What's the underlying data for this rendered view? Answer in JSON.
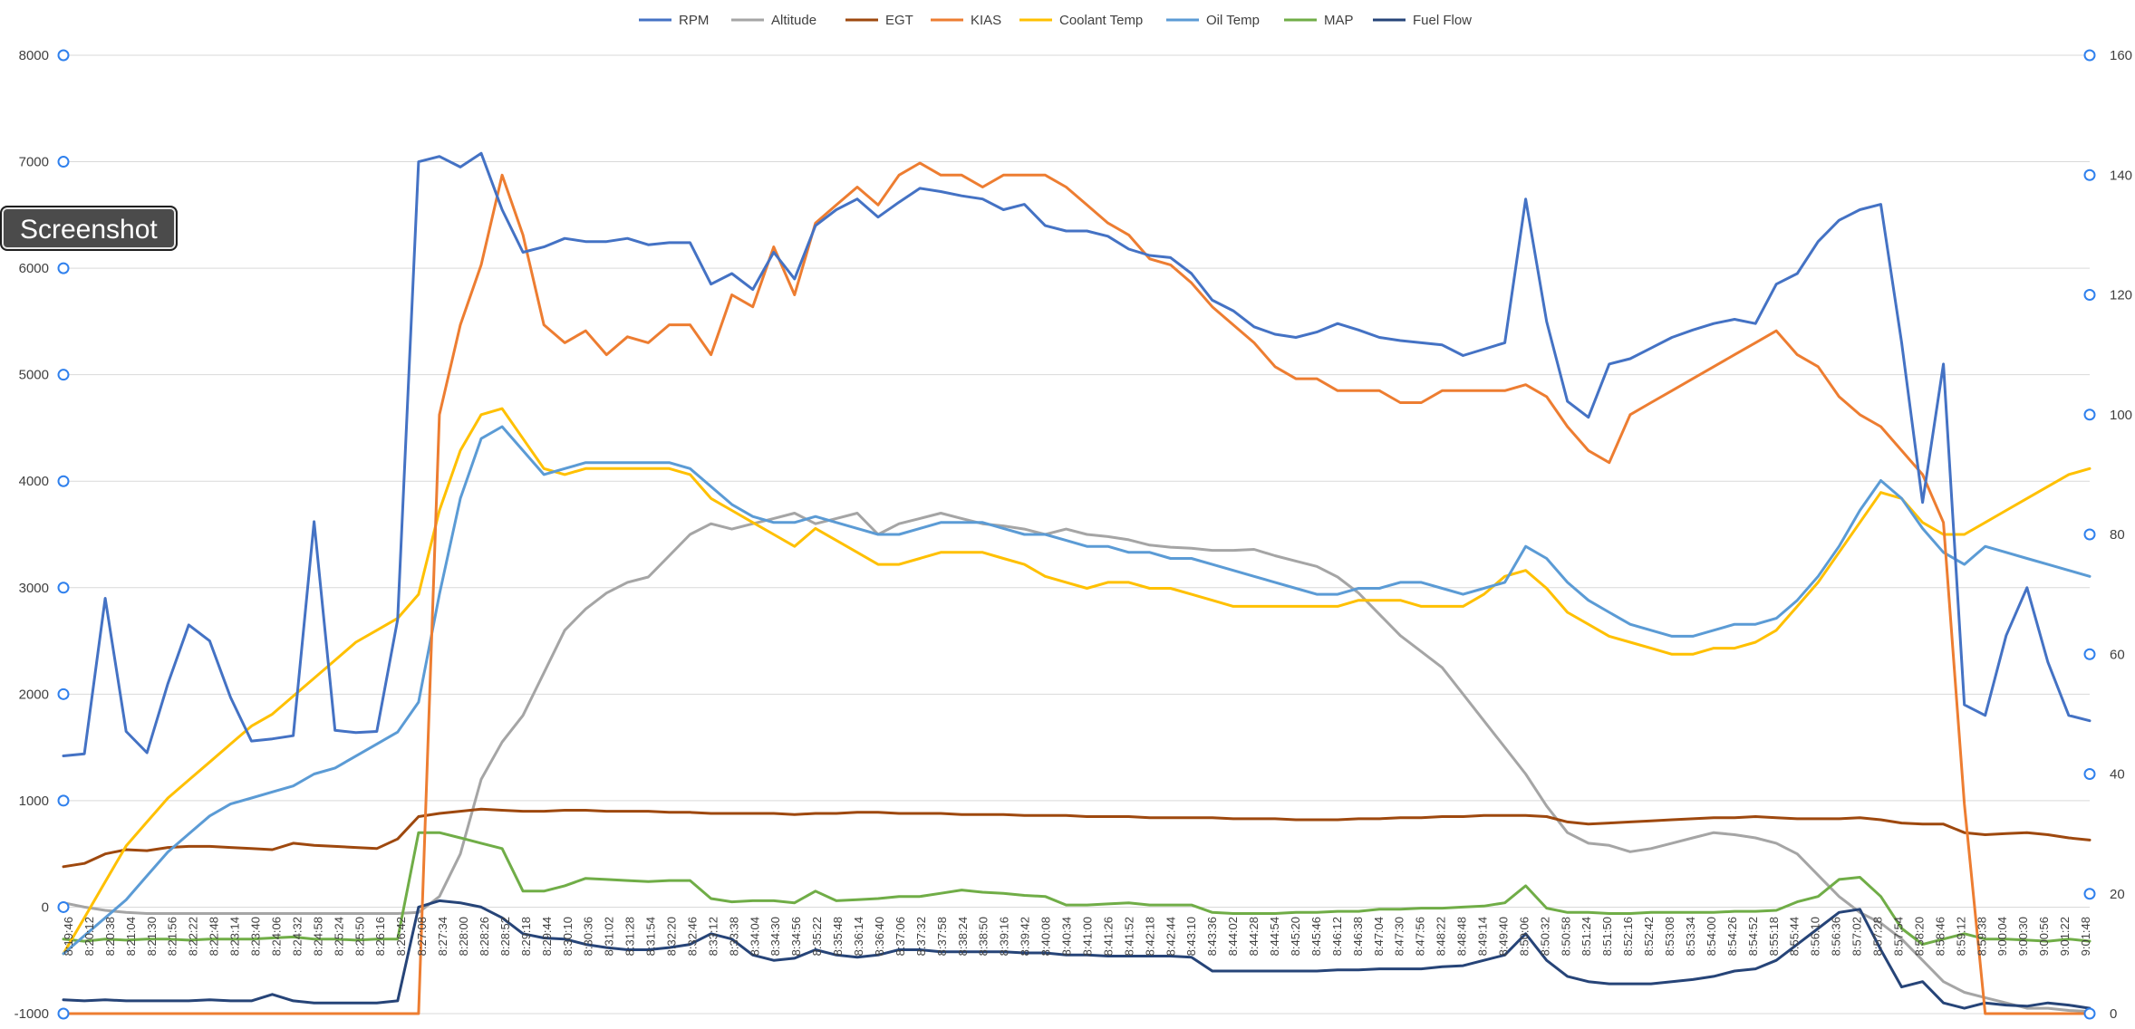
{
  "overlay": {
    "label": "Screenshot"
  },
  "colors": {
    "background": "#ffffff",
    "grid": "#d9d9d9",
    "handle": "#2f80ed"
  },
  "chart_data": {
    "type": "line",
    "title": "",
    "grid": true,
    "legend_position": "top",
    "primary_axis": {
      "side": "left",
      "ylim": [
        -1000,
        8000
      ],
      "ticks": [
        "8000",
        "7000",
        "6000",
        "5000",
        "4000",
        "3000",
        "2000",
        "1000",
        "0",
        "-1000"
      ],
      "tick_values": [
        8000,
        7000,
        6000,
        5000,
        4000,
        3000,
        2000,
        1000,
        0,
        -1000
      ]
    },
    "secondary_axis": {
      "side": "right",
      "ylim": [
        0,
        160
      ],
      "ticks": [
        "160",
        "140",
        "120",
        "100",
        "80",
        "60",
        "40",
        "20",
        "0"
      ],
      "tick_values": [
        160,
        140,
        120,
        100,
        80,
        60,
        40,
        20,
        0
      ]
    },
    "x_labels": [
      "8:19:46",
      "8:20:12",
      "8:20:38",
      "8:21:04",
      "8:21:30",
      "8:21:56",
      "8:22:22",
      "8:22:48",
      "8:23:14",
      "8:23:40",
      "8:24:06",
      "8:24:32",
      "8:24:58",
      "8:25:24",
      "8:25:50",
      "8:26:16",
      "8:26:42",
      "8:27:08",
      "8:27:34",
      "8:28:00",
      "8:28:26",
      "8:28:52",
      "8:29:18",
      "8:29:44",
      "8:30:10",
      "8:30:36",
      "8:31:02",
      "8:31:28",
      "8:31:54",
      "8:32:20",
      "8:32:46",
      "8:33:12",
      "8:33:38",
      "8:34:04",
      "8:34:30",
      "8:34:56",
      "8:35:22",
      "8:35:48",
      "8:36:14",
      "8:36:40",
      "8:37:06",
      "8:37:32",
      "8:37:58",
      "8:38:24",
      "8:38:50",
      "8:39:16",
      "8:39:42",
      "8:40:08",
      "8:40:34",
      "8:41:00",
      "8:41:26",
      "8:41:52",
      "8:42:18",
      "8:42:44",
      "8:43:10",
      "8:43:36",
      "8:44:02",
      "8:44:28",
      "8:44:54",
      "8:45:20",
      "8:45:46",
      "8:46:12",
      "8:46:38",
      "8:47:04",
      "8:47:30",
      "8:47:56",
      "8:48:22",
      "8:48:48",
      "8:49:14",
      "8:49:40",
      "8:50:06",
      "8:50:32",
      "8:50:58",
      "8:51:24",
      "8:51:50",
      "8:52:16",
      "8:52:42",
      "8:53:08",
      "8:53:34",
      "8:54:00",
      "8:54:26",
      "8:54:52",
      "8:55:18",
      "8:55:44",
      "8:56:10",
      "8:56:36",
      "8:57:02",
      "8:57:28",
      "8:57:54",
      "8:58:20",
      "8:58:46",
      "8:59:12",
      "8:59:38",
      "9:00:04",
      "9:00:30",
      "9:00:56",
      "9:01:22",
      "9:01:48"
    ],
    "series": [
      {
        "name": "RPM",
        "axis": "primary",
        "color": "#4472c4",
        "values": [
          1420,
          1440,
          2900,
          1650,
          1450,
          2100,
          2650,
          2500,
          1970,
          1560,
          1580,
          1610,
          3620,
          1660,
          1640,
          1650,
          2700,
          7000,
          7050,
          6950,
          7080,
          6550,
          6150,
          6200,
          6280,
          6250,
          6250,
          6280,
          6220,
          6240,
          6240,
          5850,
          5950,
          5800,
          6150,
          5900,
          6400,
          6550,
          6650,
          6480,
          6620,
          6750,
          6720,
          6680,
          6650,
          6550,
          6600,
          6400,
          6350,
          6350,
          6300,
          6180,
          6120,
          6100,
          5950,
          5700,
          5600,
          5450,
          5380,
          5350,
          5400,
          5480,
          5420,
          5350,
          5320,
          5300,
          5280,
          5180,
          5240,
          5300,
          6650,
          5500,
          4750,
          4600,
          5100,
          5150,
          5250,
          5350,
          5420,
          5480,
          5520,
          5480,
          5850,
          5950,
          6250,
          6450,
          6550,
          6600,
          5300,
          3800,
          5100,
          1900,
          1800,
          2550,
          3000,
          2300,
          1800,
          1750
        ]
      },
      {
        "name": "Altitude",
        "axis": "primary",
        "color": "#a5a5a5",
        "values": [
          40,
          0,
          -30,
          -50,
          -60,
          -60,
          -60,
          -60,
          -60,
          -60,
          -60,
          -60,
          -60,
          -60,
          -60,
          -60,
          -60,
          -50,
          100,
          500,
          1200,
          1550,
          1800,
          2200,
          2600,
          2800,
          2950,
          3050,
          3100,
          3300,
          3500,
          3600,
          3550,
          3600,
          3650,
          3700,
          3600,
          3650,
          3700,
          3500,
          3600,
          3650,
          3700,
          3650,
          3600,
          3580,
          3550,
          3500,
          3550,
          3500,
          3480,
          3450,
          3400,
          3380,
          3370,
          3350,
          3350,
          3360,
          3300,
          3250,
          3200,
          3100,
          2950,
          2750,
          2550,
          2400,
          2250,
          2000,
          1750,
          1500,
          1250,
          950,
          700,
          600,
          580,
          520,
          550,
          600,
          650,
          700,
          680,
          650,
          600,
          500,
          300,
          100,
          -50,
          -150,
          -300,
          -500,
          -700,
          -800,
          -850,
          -900,
          -950,
          -950,
          -970,
          -980
        ]
      },
      {
        "name": "EGT",
        "axis": "primary",
        "color": "#9e480e",
        "values": [
          380,
          410,
          500,
          540,
          530,
          560,
          570,
          570,
          560,
          550,
          540,
          600,
          580,
          570,
          560,
          550,
          640,
          850,
          880,
          900,
          920,
          910,
          900,
          900,
          910,
          910,
          900,
          900,
          900,
          890,
          890,
          880,
          880,
          880,
          880,
          870,
          880,
          880,
          890,
          890,
          880,
          880,
          880,
          870,
          870,
          870,
          860,
          860,
          860,
          850,
          850,
          850,
          840,
          840,
          840,
          840,
          830,
          830,
          830,
          820,
          820,
          820,
          830,
          830,
          840,
          840,
          850,
          850,
          860,
          860,
          860,
          850,
          800,
          780,
          790,
          800,
          810,
          820,
          830,
          840,
          840,
          850,
          840,
          830,
          830,
          830,
          840,
          820,
          790,
          780,
          780,
          700,
          680,
          690,
          700,
          680,
          650,
          630
        ]
      },
      {
        "name": "KIAS",
        "axis": "secondary",
        "color": "#ed7d31",
        "values": [
          0,
          0,
          0,
          0,
          0,
          0,
          0,
          0,
          0,
          0,
          0,
          0,
          0,
          0,
          0,
          0,
          0,
          0,
          100,
          115,
          125,
          140,
          130,
          115,
          112,
          114,
          110,
          113,
          112,
          115,
          115,
          110,
          120,
          118,
          128,
          120,
          132,
          135,
          138,
          135,
          140,
          142,
          140,
          140,
          138,
          140,
          140,
          140,
          138,
          135,
          132,
          130,
          126,
          125,
          122,
          118,
          115,
          112,
          108,
          106,
          106,
          104,
          104,
          104,
          102,
          102,
          104,
          104,
          104,
          104,
          105,
          103,
          98,
          94,
          92,
          100,
          102,
          104,
          106,
          108,
          110,
          112,
          114,
          110,
          108,
          103,
          100,
          98,
          94,
          90,
          82,
          35,
          0,
          0,
          0,
          0,
          0,
          0
        ]
      },
      {
        "name": "Coolant Temp",
        "axis": "secondary",
        "color": "#ffc000",
        "values": [
          10,
          16,
          22,
          28,
          32,
          36,
          39,
          42,
          45,
          48,
          50,
          53,
          56,
          59,
          62,
          64,
          66,
          70,
          84,
          94,
          100,
          101,
          96,
          91,
          90,
          91,
          91,
          91,
          91,
          91,
          90,
          86,
          84,
          82,
          80,
          78,
          81,
          79,
          77,
          75,
          75,
          76,
          77,
          77,
          77,
          76,
          75,
          73,
          72,
          71,
          72,
          72,
          71,
          71,
          70,
          69,
          68,
          68,
          68,
          68,
          68,
          68,
          69,
          69,
          69,
          68,
          68,
          68,
          70,
          73,
          74,
          71,
          67,
          65,
          63,
          62,
          61,
          60,
          60,
          61,
          61,
          62,
          64,
          68,
          72,
          77,
          82,
          87,
          86,
          82,
          80,
          80,
          82,
          84,
          86,
          88,
          90,
          91
        ]
      },
      {
        "name": "Oil Temp",
        "axis": "secondary",
        "color": "#5b9bd5",
        "values": [
          10,
          13,
          16,
          19,
          23,
          27,
          30,
          33,
          35,
          36,
          37,
          38,
          40,
          41,
          43,
          45,
          47,
          52,
          70,
          86,
          96,
          98,
          94,
          90,
          91,
          92,
          92,
          92,
          92,
          92,
          91,
          88,
          85,
          83,
          82,
          82,
          83,
          82,
          81,
          80,
          80,
          81,
          82,
          82,
          82,
          81,
          80,
          80,
          79,
          78,
          78,
          77,
          77,
          76,
          76,
          75,
          74,
          73,
          72,
          71,
          70,
          70,
          71,
          71,
          72,
          72,
          71,
          70,
          71,
          72,
          78,
          76,
          72,
          69,
          67,
          65,
          64,
          63,
          63,
          64,
          65,
          65,
          66,
          69,
          73,
          78,
          84,
          89,
          86,
          81,
          77,
          75,
          78,
          77,
          76,
          75,
          74,
          73
        ]
      },
      {
        "name": "MAP",
        "axis": "primary",
        "color": "#70ad47",
        "values": [
          -300,
          -320,
          -300,
          -310,
          -300,
          -300,
          -310,
          -300,
          -300,
          -300,
          -290,
          -280,
          -300,
          -300,
          -310,
          -300,
          -300,
          700,
          700,
          650,
          600,
          550,
          150,
          150,
          200,
          270,
          260,
          250,
          240,
          250,
          250,
          80,
          50,
          60,
          60,
          40,
          150,
          60,
          70,
          80,
          100,
          100,
          130,
          160,
          140,
          130,
          110,
          100,
          20,
          20,
          30,
          40,
          20,
          20,
          20,
          -50,
          -60,
          -60,
          -60,
          -50,
          -50,
          -40,
          -40,
          -20,
          -20,
          -10,
          -10,
          0,
          10,
          40,
          200,
          -10,
          -50,
          -50,
          -60,
          -60,
          -50,
          -50,
          -50,
          -50,
          -40,
          -40,
          -30,
          50,
          100,
          260,
          280,
          100,
          -200,
          -350,
          -300,
          -250,
          -300,
          -300,
          -310,
          -320,
          -300,
          -320
        ]
      },
      {
        "name": "Fuel Flow",
        "axis": "primary",
        "color": "#264478",
        "values": [
          -870,
          -880,
          -870,
          -880,
          -880,
          -880,
          -880,
          -870,
          -880,
          -880,
          -820,
          -880,
          -900,
          -900,
          -900,
          -900,
          -880,
          0,
          60,
          40,
          0,
          -100,
          -250,
          -290,
          -300,
          -350,
          -380,
          -400,
          -400,
          -380,
          -350,
          -250,
          -300,
          -450,
          -500,
          -480,
          -400,
          -450,
          -470,
          -450,
          -400,
          -400,
          -420,
          -420,
          -420,
          -420,
          -430,
          -430,
          -450,
          -450,
          -460,
          -460,
          -460,
          -460,
          -470,
          -600,
          -600,
          -600,
          -600,
          -600,
          -600,
          -590,
          -590,
          -580,
          -580,
          -580,
          -560,
          -550,
          -500,
          -450,
          -250,
          -500,
          -650,
          -700,
          -720,
          -720,
          -720,
          -700,
          -680,
          -650,
          -600,
          -580,
          -500,
          -350,
          -200,
          -50,
          -20,
          -400,
          -750,
          -700,
          -900,
          -950,
          -900,
          -920,
          -930,
          -900,
          -920,
          -950
        ]
      }
    ]
  }
}
